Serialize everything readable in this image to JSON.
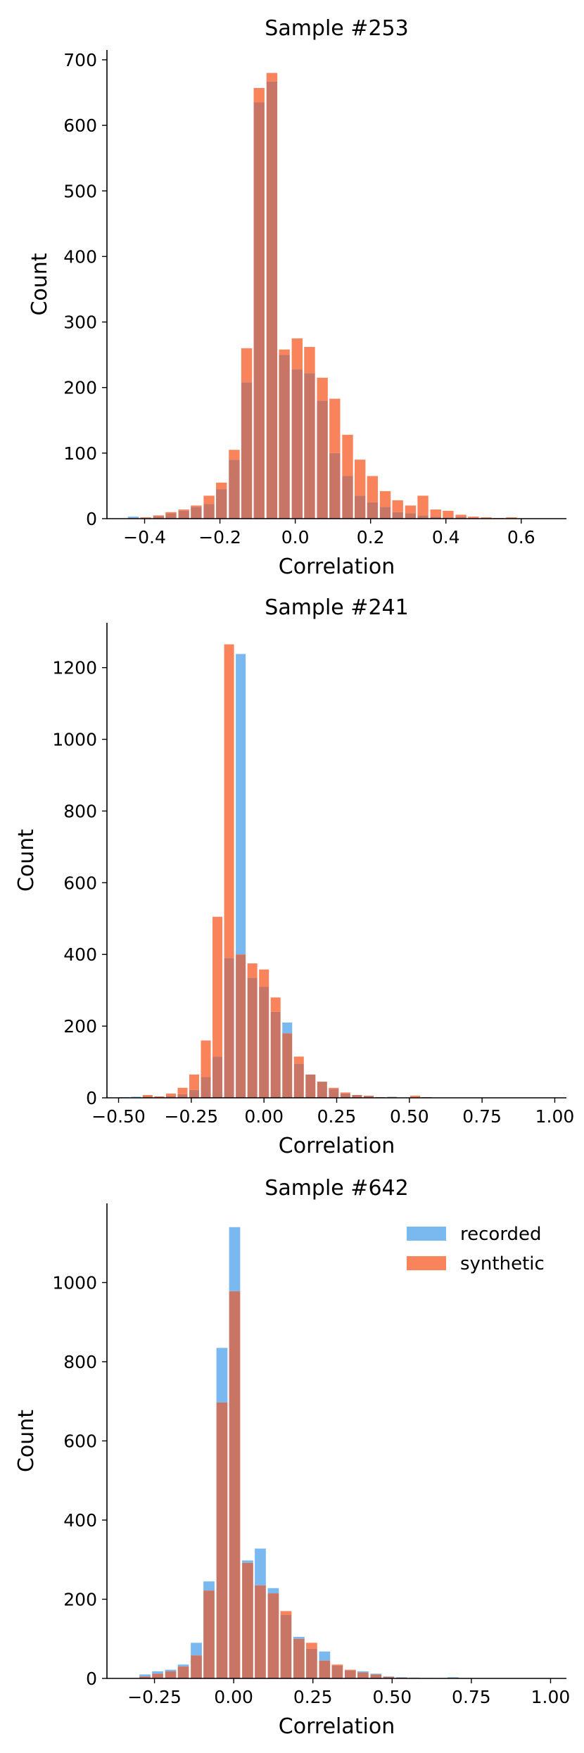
{
  "colors": {
    "recorded": "#7ab8f0",
    "synthetic": "#f9835a",
    "overlap": "#c97565"
  },
  "legend": {
    "items": [
      "recorded",
      "synthetic"
    ]
  },
  "chart_data": [
    {
      "type": "bar",
      "title": "Sample #253",
      "xlabel": "Correlation",
      "ylabel": "Count",
      "xlim": [
        -0.5,
        0.72
      ],
      "ylim": [
        0,
        715
      ],
      "xticks": [
        -0.4,
        -0.2,
        0.0,
        0.2,
        0.4,
        0.6
      ],
      "xtick_labels": [
        "−0.4",
        "−0.2",
        "0.0",
        "0.2",
        "0.4",
        "0.6"
      ],
      "yticks": [
        0,
        100,
        200,
        300,
        400,
        500,
        600,
        700
      ],
      "legend": false,
      "grid": false,
      "bin_width": 0.0334,
      "x": [
        -0.43,
        -0.397,
        -0.363,
        -0.33,
        -0.296,
        -0.263,
        -0.229,
        -0.196,
        -0.162,
        -0.129,
        -0.096,
        -0.062,
        -0.029,
        0.005,
        0.038,
        0.072,
        0.105,
        0.139,
        0.172,
        0.205,
        0.239,
        0.272,
        0.306,
        0.339,
        0.373,
        0.406,
        0.44,
        0.473,
        0.507,
        0.54,
        0.574,
        0.607,
        0.641,
        0.674
      ],
      "series": [
        {
          "name": "recorded",
          "values": [
            3,
            1,
            4,
            8,
            12,
            18,
            22,
            45,
            90,
            208,
            635,
            667,
            250,
            228,
            222,
            180,
            100,
            65,
            35,
            25,
            18,
            10,
            8,
            5,
            3,
            2,
            3,
            1,
            0,
            0,
            0,
            0,
            0,
            0
          ]
        },
        {
          "name": "synthetic",
          "values": [
            1,
            2,
            5,
            10,
            14,
            20,
            35,
            55,
            105,
            260,
            657,
            680,
            258,
            275,
            262,
            215,
            183,
            128,
            90,
            65,
            42,
            28,
            20,
            35,
            14,
            12,
            6,
            3,
            2,
            1,
            2,
            0,
            0,
            0
          ]
        }
      ]
    },
    {
      "type": "bar",
      "title": "Sample #241",
      "xlabel": "Correlation",
      "ylabel": "Count",
      "xlim": [
        -0.54,
        1.04
      ],
      "ylim": [
        0,
        1325
      ],
      "xticks": [
        -0.5,
        -0.25,
        0.0,
        0.25,
        0.5,
        0.75,
        1.0
      ],
      "xtick_labels": [
        "−0.50",
        "−0.25",
        "0.00",
        "0.25",
        "0.50",
        "0.75",
        "1.00"
      ],
      "yticks": [
        0,
        200,
        400,
        600,
        800,
        1000,
        1200
      ],
      "legend": false,
      "grid": false,
      "bin_width": 0.04,
      "x": [
        -0.48,
        -0.44,
        -0.4,
        -0.36,
        -0.32,
        -0.28,
        -0.24,
        -0.2,
        -0.16,
        -0.12,
        -0.08,
        -0.04,
        0.0,
        0.04,
        0.08,
        0.12,
        0.16,
        0.2,
        0.24,
        0.28,
        0.32,
        0.36,
        0.4,
        0.44,
        0.48,
        0.52,
        0.56,
        0.6,
        0.64,
        0.68,
        0.72,
        0.76,
        0.8,
        0.84,
        0.88,
        0.92,
        0.96,
        1.0
      ],
      "series": [
        {
          "name": "recorded",
          "values": [
            2,
            3,
            4,
            3,
            5,
            10,
            22,
            58,
            115,
            390,
            1238,
            335,
            310,
            240,
            210,
            95,
            65,
            45,
            25,
            12,
            8,
            5,
            2,
            3,
            1,
            1,
            2,
            1,
            0,
            0,
            0,
            0,
            0,
            0,
            0,
            0,
            0,
            0
          ]
        },
        {
          "name": "synthetic",
          "values": [
            0,
            0,
            8,
            4,
            12,
            28,
            65,
            160,
            505,
            1265,
            400,
            375,
            358,
            280,
            180,
            115,
            65,
            45,
            28,
            15,
            8,
            6,
            2,
            2,
            1,
            6,
            2,
            1,
            0,
            0,
            0,
            0,
            0,
            0,
            0,
            0,
            0,
            0
          ]
        }
      ]
    },
    {
      "type": "bar",
      "title": "Sample #642",
      "xlabel": "Correlation",
      "ylabel": "Count",
      "xlim": [
        -0.4,
        1.05
      ],
      "ylim": [
        0,
        1200
      ],
      "xticks": [
        -0.25,
        0.0,
        0.25,
        0.5,
        0.75,
        1.0
      ],
      "xtick_labels": [
        "−0.25",
        "0.00",
        "0.25",
        "0.50",
        "0.75",
        "1.00"
      ],
      "yticks": [
        0,
        200,
        400,
        600,
        800,
        1000
      ],
      "legend": true,
      "legend_position": "top-right",
      "grid": false,
      "bin_width": 0.0405,
      "x": [
        -0.28,
        -0.24,
        -0.199,
        -0.159,
        -0.118,
        -0.078,
        -0.037,
        0.003,
        0.044,
        0.084,
        0.125,
        0.165,
        0.206,
        0.246,
        0.287,
        0.327,
        0.368,
        0.408,
        0.449,
        0.489,
        0.53,
        0.57,
        0.611,
        0.651,
        0.692,
        0.732,
        0.773,
        0.813,
        0.854,
        0.894,
        0.935,
        0.975
      ],
      "series": [
        {
          "name": "recorded",
          "values": [
            10,
            18,
            22,
            35,
            90,
            245,
            835,
            1140,
            298,
            328,
            228,
            160,
            105,
            75,
            68,
            32,
            20,
            18,
            12,
            5,
            3,
            2,
            1,
            1,
            3,
            1,
            0,
            0,
            0,
            0,
            0,
            0
          ]
        },
        {
          "name": "synthetic",
          "values": [
            5,
            12,
            18,
            30,
            58,
            222,
            697,
            978,
            292,
            235,
            215,
            170,
            100,
            90,
            45,
            35,
            22,
            15,
            10,
            4,
            2,
            1,
            1,
            0,
            1,
            0,
            0,
            0,
            0,
            0,
            0,
            0
          ]
        }
      ]
    }
  ]
}
